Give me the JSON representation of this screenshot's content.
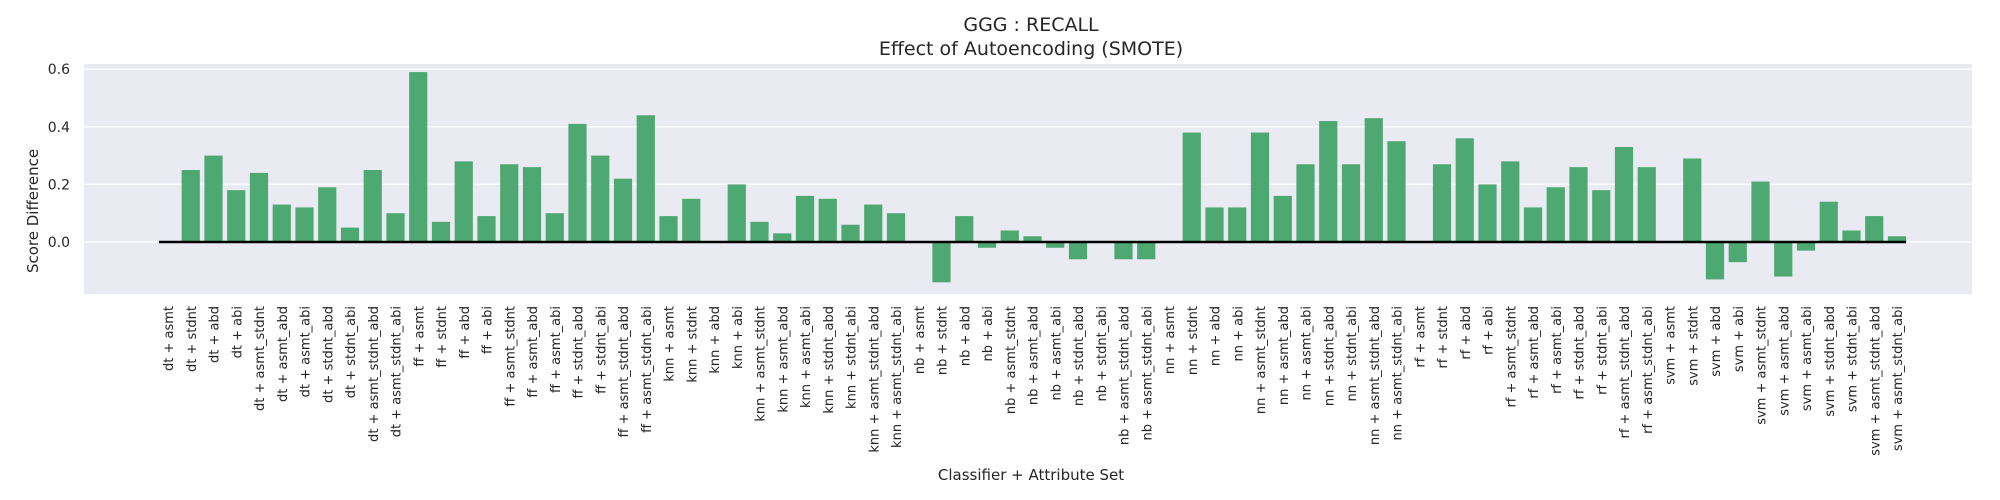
{
  "chart_data": {
    "type": "bar",
    "title": "GGG : RECALL",
    "subtitle": "Effect of Autoencoding (SMOTE)",
    "xlabel": "Classifier + Attribute Set",
    "ylabel": "Score Difference",
    "ylim": [
      -0.18,
      0.62
    ],
    "yticks": [
      "0.0",
      "0.2",
      "0.4",
      "0.6"
    ],
    "grid": true,
    "legend": "none",
    "colors": {
      "bar": "#4ea872",
      "panel": "#eaeaf2",
      "grid": "#ffffff",
      "baseline": "#000000"
    },
    "categories": [
      "dt + asmt",
      "dt + stdnt",
      "dt + abd",
      "dt + abi",
      "dt + asmt_stdnt",
      "dt + asmt_abd",
      "dt + asmt_abi",
      "dt + stdnt_abd",
      "dt + stdnt_abi",
      "dt + asmt_stdnt_abd",
      "dt + asmt_stdnt_abi",
      "ff + asmt",
      "ff + stdnt",
      "ff + abd",
      "ff + abi",
      "ff + asmt_stdnt",
      "ff + asmt_abd",
      "ff + asmt_abi",
      "ff + stdnt_abd",
      "ff + stdnt_abi",
      "ff + asmt_stdnt_abd",
      "ff + asmt_stdnt_abi",
      "knn + asmt",
      "knn + stdnt",
      "knn + abd",
      "knn + abi",
      "knn + asmt_stdnt",
      "knn + asmt_abd",
      "knn + asmt_abi",
      "knn + stdnt_abd",
      "knn + stdnt_abi",
      "knn + asmt_stdnt_abd",
      "knn + asmt_stdnt_abi",
      "nb + asmt",
      "nb + stdnt",
      "nb + abd",
      "nb + abi",
      "nb + asmt_stdnt",
      "nb + asmt_abd",
      "nb + asmt_abi",
      "nb + stdnt_abd",
      "nb + stdnt_abi",
      "nb + asmt_stdnt_abd",
      "nb + asmt_stdnt_abi",
      "nn + asmt",
      "nn + stdnt",
      "nn + abd",
      "nn + abi",
      "nn + asmt_stdnt",
      "nn + asmt_abd",
      "nn + asmt_abi",
      "nn + stdnt_abd",
      "nn + stdnt_abi",
      "nn + asmt_stdnt_abd",
      "nn + asmt_stdnt_abi",
      "rf + asmt",
      "rf + stdnt",
      "rf + abd",
      "rf + abi",
      "rf + asmt_stdnt",
      "rf + asmt_abd",
      "rf + asmt_abi",
      "rf + stdnt_abd",
      "rf + stdnt_abi",
      "rf + asmt_stdnt_abd",
      "rf + asmt_stdnt_abi",
      "svm + asmt",
      "svm + stdnt",
      "svm + abd",
      "svm + abi",
      "svm + asmt_stdnt",
      "svm + asmt_abd",
      "svm + asmt_abi",
      "svm + stdnt_abd",
      "svm + stdnt_abi",
      "svm + asmt_stdnt_abd",
      "svm + asmt_stdnt_abi"
    ],
    "values": [
      0.0,
      0.25,
      0.3,
      0.18,
      0.24,
      0.13,
      0.12,
      0.19,
      0.05,
      0.25,
      0.1,
      0.59,
      0.07,
      0.28,
      0.09,
      0.27,
      0.26,
      0.1,
      0.41,
      0.3,
      0.22,
      0.44,
      0.09,
      0.15,
      0.0,
      0.2,
      0.07,
      0.03,
      0.16,
      0.15,
      0.06,
      0.13,
      0.1,
      0.0,
      -0.14,
      0.09,
      -0.02,
      0.04,
      0.02,
      -0.02,
      -0.06,
      0.0,
      -0.06,
      -0.06,
      0.0,
      0.38,
      0.12,
      0.12,
      0.38,
      0.16,
      0.27,
      0.42,
      0.27,
      0.43,
      0.35,
      0.0,
      0.27,
      0.36,
      0.2,
      0.28,
      0.12,
      0.19,
      0.26,
      0.18,
      0.33,
      0.26,
      0.0,
      0.29,
      -0.13,
      -0.07,
      0.21,
      -0.12,
      -0.03,
      0.14,
      0.04,
      0.09,
      0.02
    ]
  }
}
